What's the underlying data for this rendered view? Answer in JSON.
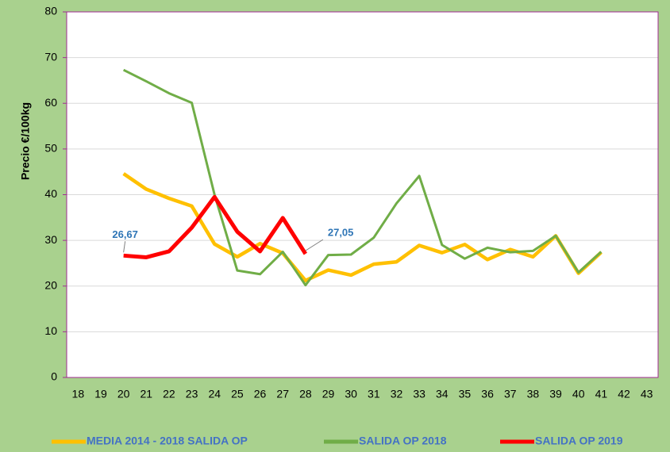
{
  "chart_data": {
    "type": "line",
    "y_label": "Precio €/100kg",
    "categories": [
      "18",
      "19",
      "20",
      "21",
      "22",
      "23",
      "24",
      "25",
      "26",
      "27",
      "28",
      "29",
      "30",
      "31",
      "32",
      "33",
      "34",
      "35",
      "36",
      "37",
      "38",
      "39",
      "40",
      "41",
      "42",
      "43"
    ],
    "ylim": [
      0,
      80
    ],
    "yticks": [
      0,
      10,
      20,
      30,
      40,
      50,
      60,
      70,
      80
    ],
    "grid": true,
    "series": [
      {
        "name": "MEDIA 2014 - 2018 SALIDA OP",
        "color": "#ffc000",
        "values": [
          null,
          null,
          44.6,
          41.2,
          39.2,
          37.5,
          29.2,
          26.4,
          29.3,
          27.2,
          21.2,
          23.5,
          22.4,
          24.8,
          25.3,
          28.9,
          27.3,
          29.1,
          25.8,
          28.0,
          26.4,
          31.0,
          22.8,
          27.4,
          null,
          null
        ]
      },
      {
        "name": "SALIDA OP 2018",
        "color": "#70ad47",
        "values": [
          null,
          null,
          67.3,
          64.8,
          62.2,
          60.1,
          40.0,
          23.4,
          22.6,
          27.5,
          20.2,
          26.8,
          26.9,
          30.6,
          38.1,
          44.1,
          29.0,
          26.0,
          28.4,
          27.4,
          27.7,
          31.0,
          23.0,
          27.5,
          null,
          null
        ]
      },
      {
        "name": "SALIDA OP 2019",
        "color": "#ff0000",
        "values": [
          null,
          null,
          26.67,
          26.3,
          27.6,
          32.8,
          39.5,
          31.9,
          27.6,
          34.9,
          27.05,
          null,
          null,
          null,
          null,
          null,
          null,
          null,
          null,
          null,
          null,
          null,
          null,
          null,
          null,
          null
        ],
        "value_labels": [
          null,
          null,
          "26,67",
          null,
          null,
          null,
          null,
          null,
          null,
          null,
          "27,05",
          null,
          null,
          null,
          null,
          null,
          null,
          null,
          null,
          null,
          null,
          null,
          null,
          null,
          null,
          null
        ]
      }
    ]
  }
}
